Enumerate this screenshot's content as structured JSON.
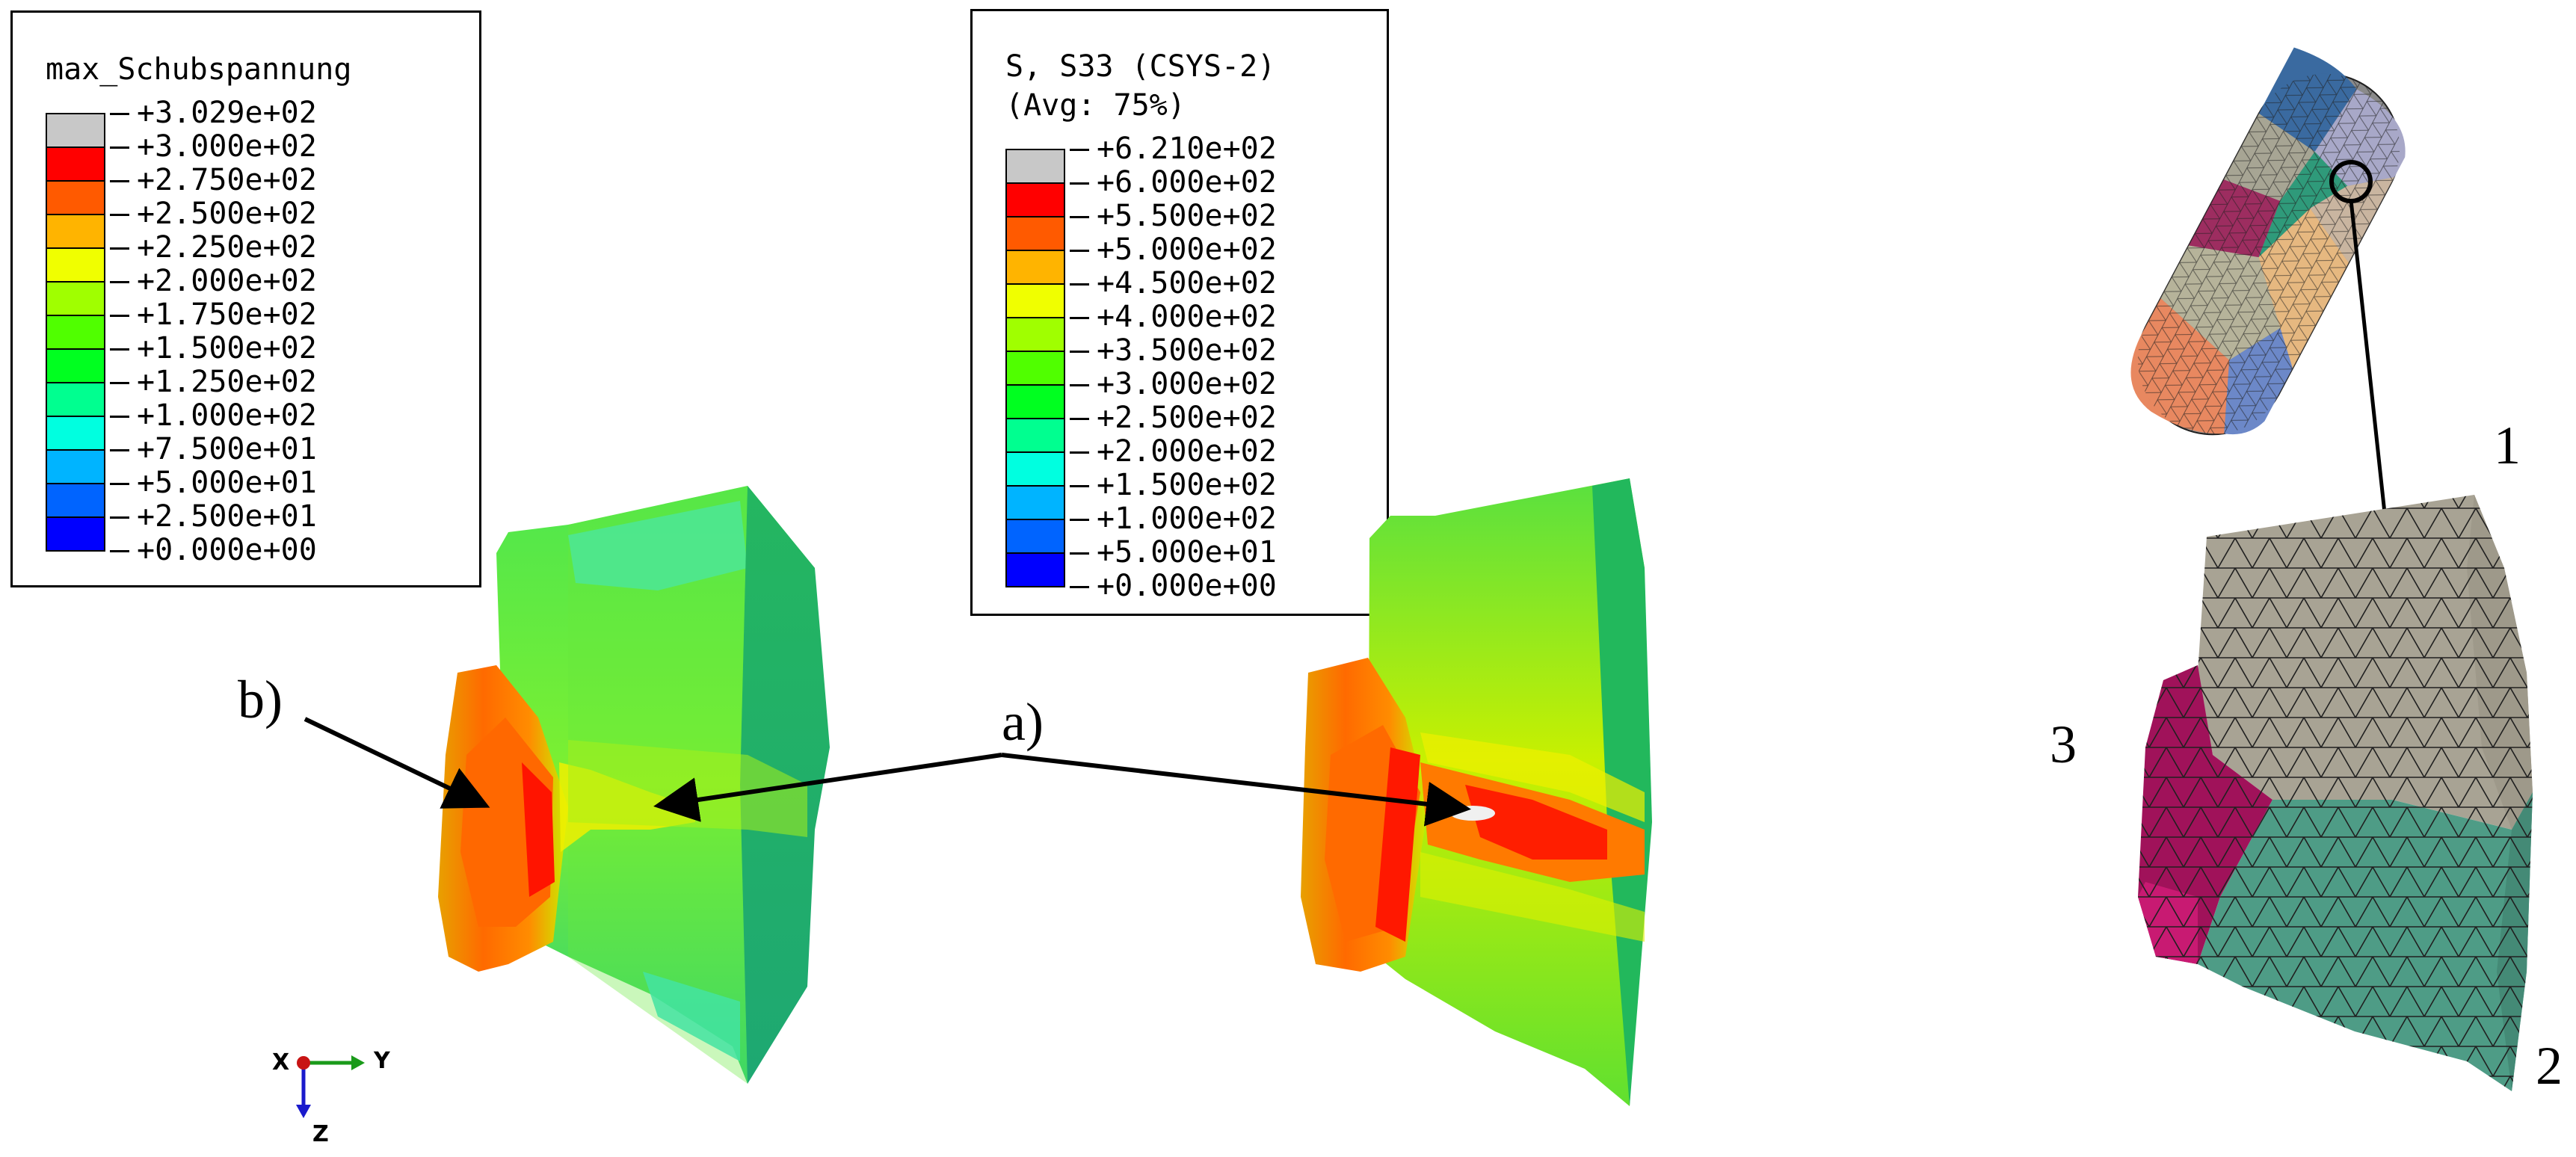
{
  "legend_shear": {
    "title": "max_Schubspannung",
    "values": [
      "+3.029e+02",
      "+3.000e+02",
      "+2.750e+02",
      "+2.500e+02",
      "+2.250e+02",
      "+2.000e+02",
      "+1.750e+02",
      "+1.500e+02",
      "+1.250e+02",
      "+1.000e+02",
      "+7.500e+01",
      "+5.000e+01",
      "+2.500e+01",
      "+0.000e+00"
    ]
  },
  "legend_s33": {
    "title_line1": "S, S33 (CSYS-2)",
    "title_line2": "(Avg: 75%)",
    "values": [
      "+6.210e+02",
      "+6.000e+02",
      "+5.500e+02",
      "+5.000e+02",
      "+4.500e+02",
      "+4.000e+02",
      "+3.500e+02",
      "+3.000e+02",
      "+2.500e+02",
      "+2.000e+02",
      "+1.500e+02",
      "+1.000e+02",
      "+5.000e+01",
      "+0.000e+00"
    ]
  },
  "colors": {
    "band_colors": [
      "#c8c8c8",
      "#ff0000",
      "#ff5a00",
      "#ffb400",
      "#f0ff00",
      "#a0ff00",
      "#50ff00",
      "#00ff20",
      "#00ff90",
      "#00ffe0",
      "#00b4ff",
      "#0064ff",
      "#0000ff"
    ],
    "grain_gray": "#a8a394",
    "grain_magenta": "#a0125a",
    "grain_teal": "#4e9c86"
  },
  "labels": {
    "a": "a)",
    "b": "b)",
    "n1": "1",
    "n2": "2",
    "n3": "3"
  },
  "triad": {
    "x": "X",
    "y": "Y",
    "z": "Z"
  }
}
